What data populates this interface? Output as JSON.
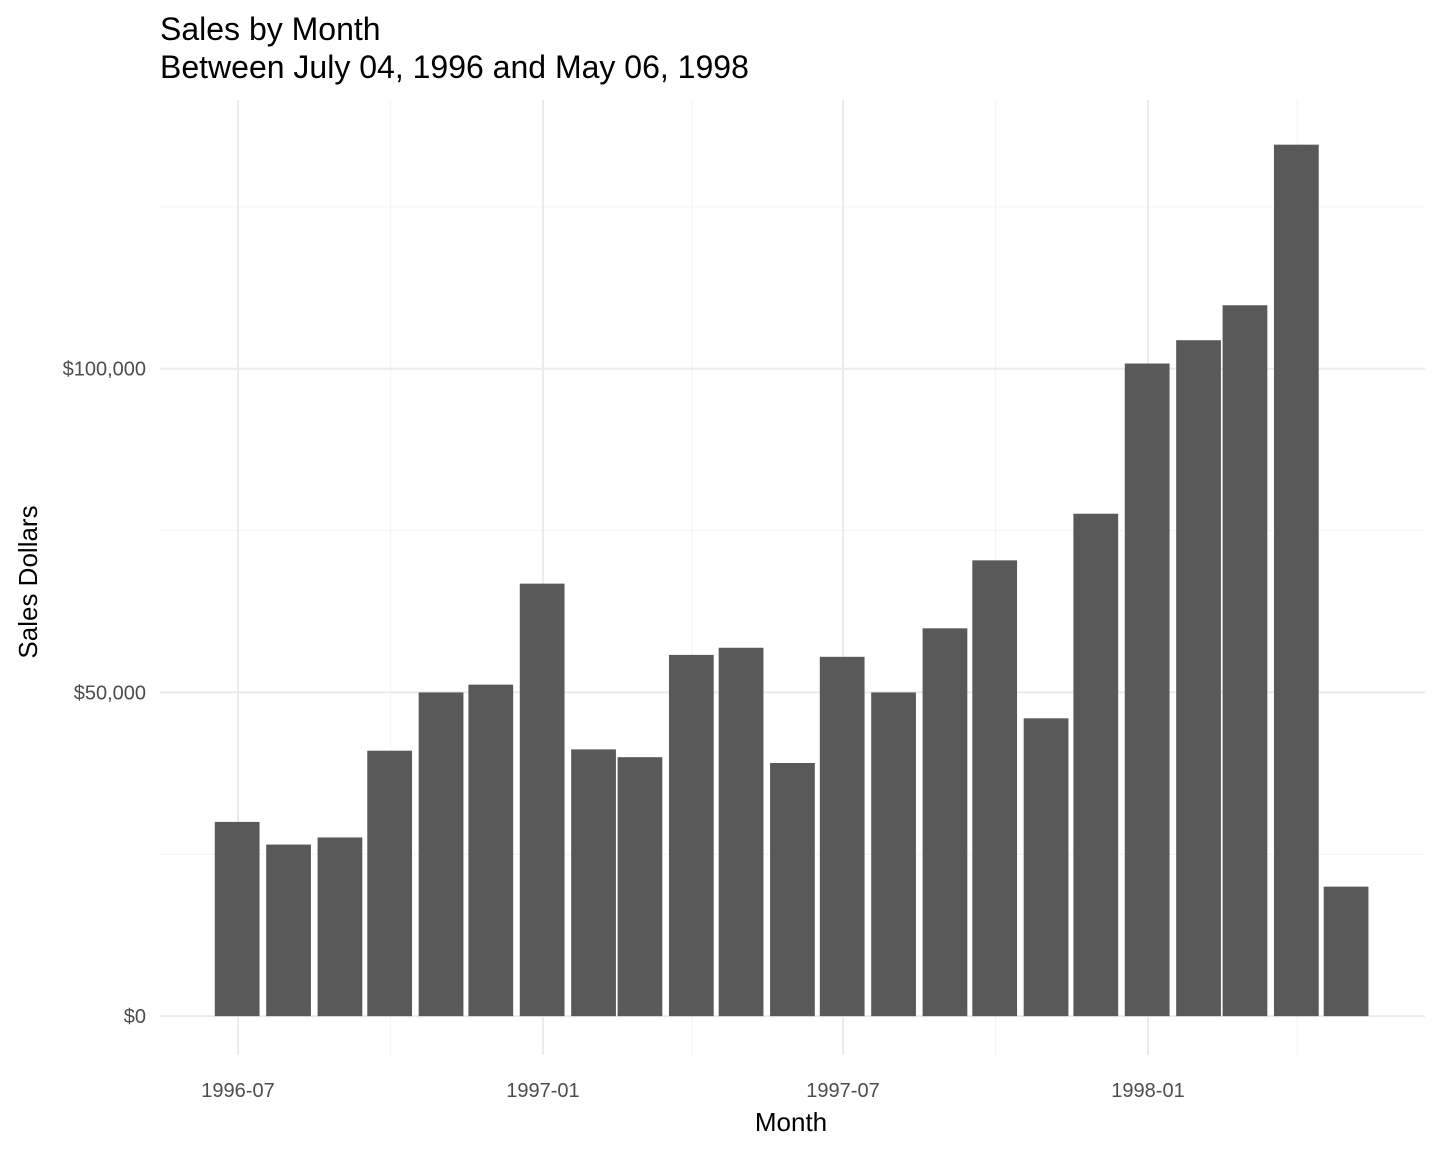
{
  "chart_data": {
    "type": "bar",
    "title": "Sales by Month",
    "subtitle": "Between July 04, 1996 and May 06, 1998",
    "xlabel": "Month",
    "ylabel": "Sales Dollars",
    "categories": [
      "1996-07",
      "1996-08",
      "1996-09",
      "1996-10",
      "1996-11",
      "1996-12",
      "1997-01",
      "1997-02",
      "1997-03",
      "1997-04",
      "1997-05",
      "1997-06",
      "1997-07",
      "1997-08",
      "1997-09",
      "1997-10",
      "1997-11",
      "1997-12",
      "1998-01",
      "1998-02",
      "1998-03",
      "1998-04",
      "1998-05"
    ],
    "x": [
      "1996-07-01",
      "1996-08-01",
      "1996-09-01",
      "1996-10-01",
      "1996-11-01",
      "1996-12-01",
      "1997-01-01",
      "1997-02-01",
      "1997-03-01",
      "1997-04-01",
      "1997-05-01",
      "1997-06-01",
      "1997-07-01",
      "1997-08-01",
      "1997-09-01",
      "1997-10-01",
      "1997-11-01",
      "1997-12-01",
      "1998-01-01",
      "1998-02-01",
      "1998-03-01",
      "1998-04-01",
      "1998-05-01"
    ],
    "values": [
      30000,
      26500,
      27600,
      41000,
      50000,
      51200,
      66800,
      41200,
      40000,
      55800,
      56900,
      39100,
      55500,
      50000,
      59900,
      70400,
      46000,
      77600,
      100800,
      104400,
      109800,
      134600,
      20000
    ],
    "ylim": [
      -6000,
      141500
    ],
    "y_ticks": [
      {
        "value": 0,
        "label": "$0"
      },
      {
        "value": 50000,
        "label": "$50,000"
      },
      {
        "value": 100000,
        "label": "$100,000"
      }
    ],
    "y_minor_ticks": [
      25000,
      75000,
      125000
    ],
    "x_ticks": [
      {
        "value": "1996-07-01",
        "label": "1996-07"
      },
      {
        "value": "1997-01-01",
        "label": "1997-01"
      },
      {
        "value": "1997-07-01",
        "label": "1997-07"
      },
      {
        "value": "1998-01-01",
        "label": "1998-01"
      }
    ],
    "x_minor_ticks": [
      "1996-10-01",
      "1997-04-01",
      "1997-10-01",
      "1998-04-01"
    ],
    "grid": true,
    "legend": "none",
    "colors": {
      "bar": "#595959",
      "grid_major": "#ebebeb",
      "grid_minor": "#f5f5f5",
      "tick_text": "#4d4d4d",
      "text": "#000000"
    }
  }
}
